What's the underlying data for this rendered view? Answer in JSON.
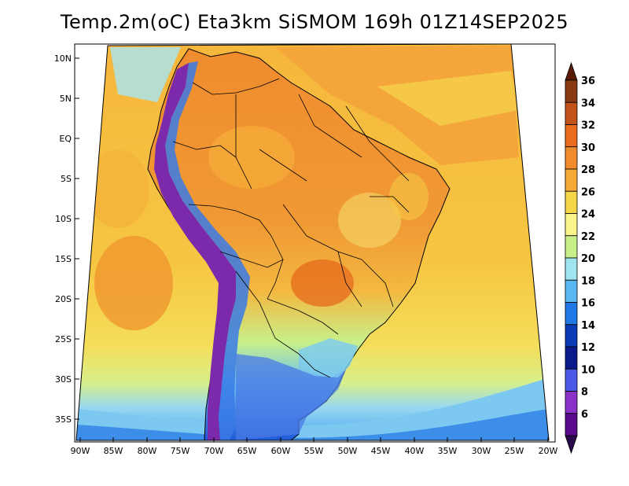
{
  "title": "Temp.2m(oC) Eta3km SiSMOM 169h 01Z14SEP2025",
  "lat_labels": [
    "10N",
    "5N",
    "EQ",
    "5S",
    "10S",
    "15S",
    "20S",
    "25S",
    "30S",
    "35S"
  ],
  "lon_labels": [
    "90W",
    "85W",
    "80W",
    "75W",
    "70W",
    "65W",
    "60W",
    "55W",
    "50W",
    "45W",
    "40W",
    "35W",
    "30W",
    "25W",
    "20W"
  ],
  "colorbar": {
    "labels": [
      "36",
      "34",
      "32",
      "30",
      "28",
      "26",
      "24",
      "22",
      "20",
      "18",
      "16",
      "14",
      "12",
      "10",
      "8",
      "6"
    ],
    "colors": [
      "#5a1a08",
      "#8a3a12",
      "#c0521a",
      "#ea6c1e",
      "#f08c2e",
      "#f5aa38",
      "#f5d648",
      "#fbf48a",
      "#c8f08a",
      "#a0e4f0",
      "#5ab8f0",
      "#1e78e6",
      "#0a3ab4",
      "#0a1a8a",
      "#4a5ae6",
      "#8a32c8",
      "#5a0a8a",
      "#2a0a4a"
    ]
  },
  "colors": {
    "ocean_warm": "#f5a83a",
    "ocean_cool": "#f5d040",
    "land": "#f08c2e",
    "andes": "#7a2aaa",
    "south_cold": "#5ab4f0"
  }
}
